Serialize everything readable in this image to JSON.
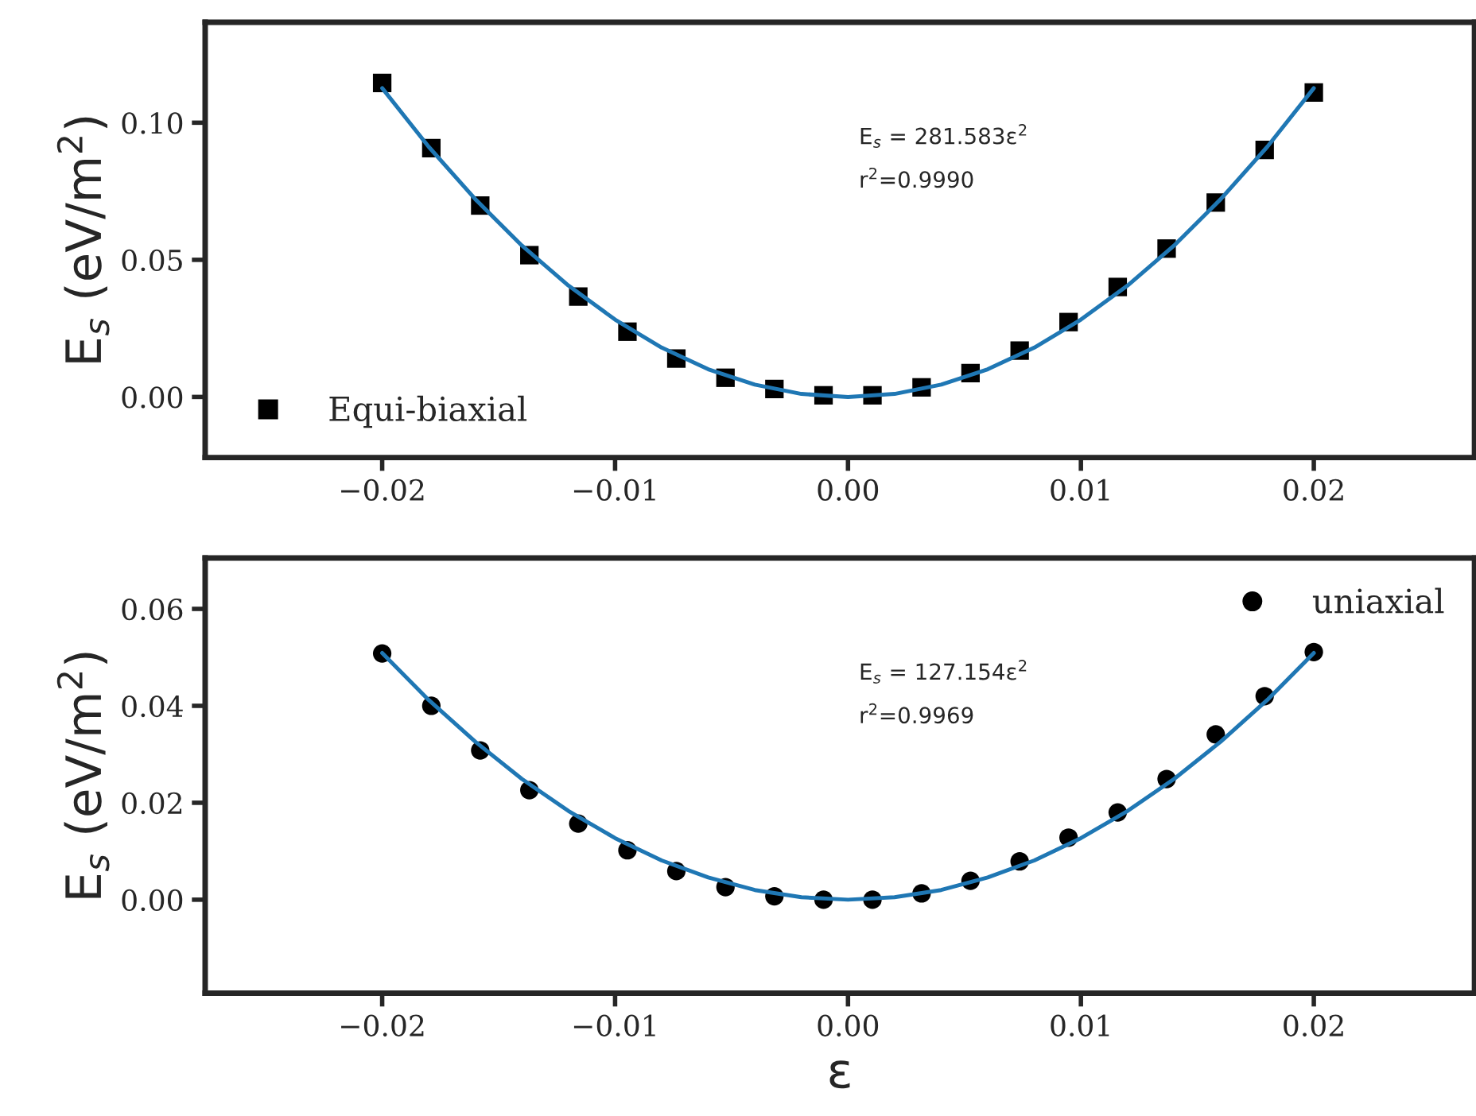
{
  "chart_data": [
    {
      "type": "scatter",
      "ylabel": "E$_{s}$ (eV/m$^{2}$)",
      "xlim": [
        -0.0276,
        0.0269
      ],
      "ylim": [
        -0.0221,
        0.1366
      ],
      "xticks": [
        {
          "value": -0.02,
          "label": "−0.02"
        },
        {
          "value": -0.01,
          "label": "−0.01"
        },
        {
          "value": 0.0,
          "label": "0.00"
        },
        {
          "value": 0.01,
          "label": "0.01"
        },
        {
          "value": 0.02,
          "label": "0.02"
        }
      ],
      "yticks": [
        {
          "value": 0.0,
          "label": "0.00"
        },
        {
          "value": 0.05,
          "label": "0.05"
        },
        {
          "value": 0.1,
          "label": "0.10"
        }
      ],
      "annotations": [
        "E$_{s}$ = 281.583ε$^{2}$",
        "r$^{2}$=0.9990"
      ],
      "legend": "bottom left",
      "grid": false,
      "series": [
        {
          "name": "Equi-biaxial",
          "color": "#000000",
          "marker": "square",
          "x": [
            -0.02,
            -0.01789,
            -0.01579,
            -0.01368,
            -0.01158,
            -0.00947,
            -0.00737,
            -0.00526,
            -0.00316,
            -0.00105,
            0.00105,
            0.00316,
            0.00526,
            0.00737,
            0.00947,
            0.01158,
            0.01368,
            0.01579,
            0.01789,
            0.02
          ],
          "values": [
            0.1145,
            0.0907,
            0.0698,
            0.0517,
            0.0366,
            0.0238,
            0.014,
            0.007,
            0.0029,
            0.0006,
            0.0006,
            0.0035,
            0.0087,
            0.0169,
            0.0273,
            0.0401,
            0.0541,
            0.0709,
            0.0901,
            0.111
          ]
        },
        {
          "type": "line",
          "color": "#1f77b4",
          "x": [
            -0.02,
            -0.018,
            -0.016,
            -0.014,
            -0.012,
            -0.01,
            -0.008,
            -0.006,
            -0.004,
            -0.002,
            0.0,
            0.002,
            0.004,
            0.006,
            0.008,
            0.01,
            0.012,
            0.014,
            0.016,
            0.018,
            0.02
          ],
          "values": [
            0.1126,
            0.0912,
            0.0721,
            0.0552,
            0.0406,
            0.0282,
            0.018,
            0.0101,
            0.0045,
            0.0011,
            0.0,
            0.0011,
            0.0045,
            0.0101,
            0.018,
            0.0282,
            0.0406,
            0.0552,
            0.0721,
            0.0912,
            0.1126
          ]
        }
      ]
    },
    {
      "type": "scatter",
      "ylabel": "E$_{s}$ (eV/m$^{2}$)",
      "xlabel": "ε",
      "xlim": [
        -0.0276,
        0.0269
      ],
      "ylim": [
        -0.0193,
        0.0705
      ],
      "xticks": [
        {
          "value": -0.02,
          "label": "−0.02"
        },
        {
          "value": -0.01,
          "label": "−0.01"
        },
        {
          "value": 0.0,
          "label": "0.00"
        },
        {
          "value": 0.01,
          "label": "0.01"
        },
        {
          "value": 0.02,
          "label": "0.02"
        }
      ],
      "yticks": [
        {
          "value": 0.0,
          "label": "0.00"
        },
        {
          "value": 0.02,
          "label": "0.02"
        },
        {
          "value": 0.04,
          "label": "0.04"
        },
        {
          "value": 0.06,
          "label": "0.06"
        }
      ],
      "annotations": [
        "E$_{s}$ = 127.154ε$^{2}$",
        "r$^{2}$=0.9969"
      ],
      "legend": "top right",
      "grid": false,
      "series": [
        {
          "name": "uniaxial",
          "color": "#000000",
          "marker": "circle",
          "x": [
            -0.02,
            -0.01789,
            -0.01579,
            -0.01368,
            -0.01158,
            -0.00947,
            -0.00737,
            -0.00526,
            -0.00316,
            -0.00105,
            0.00105,
            0.00316,
            0.00526,
            0.00737,
            0.00947,
            0.01158,
            0.01368,
            0.01579,
            0.01789,
            0.02
          ],
          "values": [
            0.0508,
            0.04,
            0.0308,
            0.0226,
            0.0157,
            0.0102,
            0.0059,
            0.0026,
            0.0007,
            0.0,
            0.0,
            0.0013,
            0.0039,
            0.0079,
            0.0128,
            0.018,
            0.0249,
            0.0341,
            0.042,
            0.0511
          ]
        },
        {
          "type": "line",
          "color": "#1f77b4",
          "x": [
            -0.02,
            -0.018,
            -0.016,
            -0.014,
            -0.012,
            -0.01,
            -0.008,
            -0.006,
            -0.004,
            -0.002,
            0.0,
            0.002,
            0.004,
            0.006,
            0.008,
            0.01,
            0.012,
            0.014,
            0.016,
            0.018,
            0.02
          ],
          "values": [
            0.0509,
            0.0412,
            0.0326,
            0.0249,
            0.0183,
            0.0127,
            0.0081,
            0.0046,
            0.002,
            0.0005,
            0.0,
            0.0005,
            0.002,
            0.0046,
            0.0081,
            0.0127,
            0.0183,
            0.0249,
            0.0326,
            0.0412,
            0.0509
          ]
        }
      ]
    }
  ]
}
